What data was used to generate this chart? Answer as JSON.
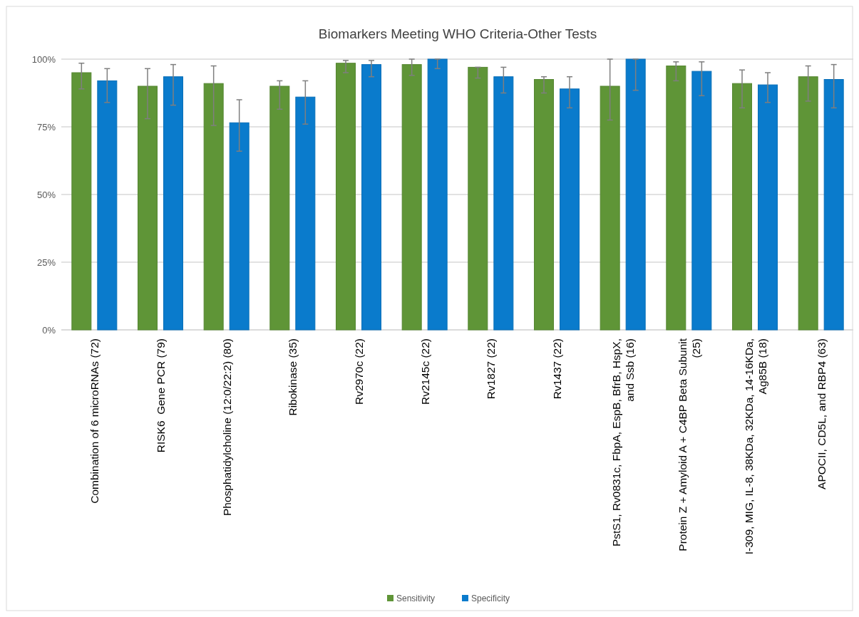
{
  "chart_data": {
    "type": "bar",
    "title": "Biomarkers Meeting WHO Criteria-Other Tests",
    "categories": [
      "Combination of 6 microRNAs (72)",
      "RISK6  Gene PCR (79)",
      "Phosphatidylcholine (12:0/22:2) (80)",
      "Ribokinase (35)",
      "Rv2970c (22)",
      "Rv2145c (22)",
      "Rv1827 (22)",
      "Rv1437 (22)",
      "PstS1, Rv0831c, FbpA, EspB, BfrB, HspX, and Ssb (16)",
      "Protein Z + Amyloid A + C4BP Beta Subunit (25)",
      "I-309, MIG, IL-8, 38KDa, 32KDa, 14-16KDa, Ag85B (18)",
      "APOCII, CD5L, and RBP4 (63)"
    ],
    "series": [
      {
        "name": "Sensitivity",
        "color": "#5f9537",
        "values": [
          95,
          90,
          91,
          90,
          98.5,
          98,
          97,
          92.5,
          90,
          97.5,
          91,
          93.5
        ],
        "errors": [
          [
            89,
            98.5
          ],
          [
            78,
            96.5
          ],
          [
            75.5,
            97.5
          ],
          [
            81.5,
            92
          ],
          [
            95,
            99.5
          ],
          [
            94,
            100
          ],
          [
            93,
            97
          ],
          [
            87.5,
            93.5
          ],
          [
            77.5,
            100
          ],
          [
            92,
            99
          ],
          [
            82,
            96
          ],
          [
            84.5,
            97.5
          ]
        ]
      },
      {
        "name": "Specificity",
        "color": "#0a7bcc",
        "values": [
          92,
          93.5,
          76.5,
          86,
          98,
          100,
          93.5,
          89,
          100,
          95.5,
          90.5,
          92.5
        ],
        "errors": [
          [
            84,
            96.5
          ],
          [
            83,
            98
          ],
          [
            66,
            85
          ],
          [
            76,
            92
          ],
          [
            93.5,
            99.5
          ],
          [
            96.5,
            100
          ],
          [
            87.5,
            97
          ],
          [
            82,
            93.5
          ],
          [
            88.5,
            100
          ],
          [
            86.5,
            99
          ],
          [
            84,
            95
          ],
          [
            82,
            98
          ]
        ]
      }
    ],
    "ylim": [
      0,
      100
    ],
    "yticks": [
      {
        "value": 0,
        "label": "0%"
      },
      {
        "value": 25,
        "label": "25%"
      },
      {
        "value": 50,
        "label": "50%"
      },
      {
        "value": 75,
        "label": "75%"
      },
      {
        "value": 100,
        "label": "100%"
      }
    ],
    "grid": "y",
    "legend": "bottom"
  }
}
